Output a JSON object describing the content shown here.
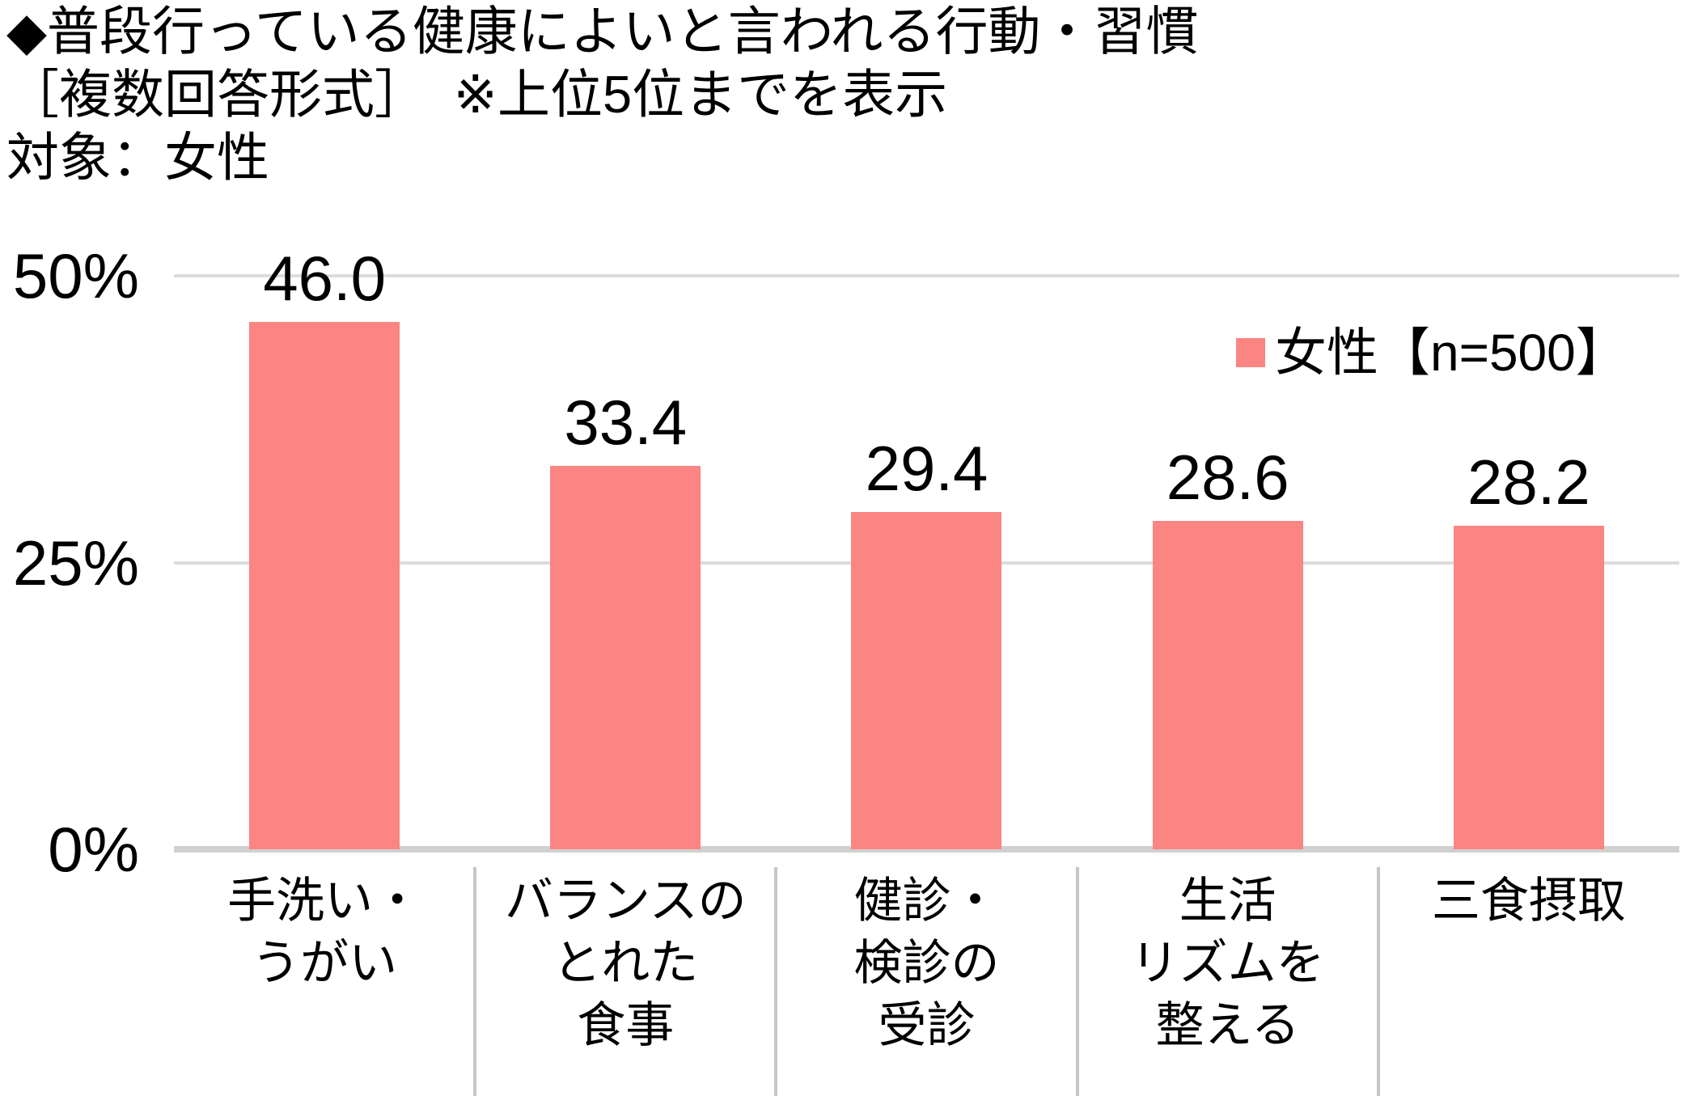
{
  "header": {
    "title": "◆普段行っている健康によいと言われる行動・習慣",
    "subtitle": "［複数回答形式］　※上位5位までを表示",
    "target": "対象：女性"
  },
  "legend": {
    "label": "女性【n=500】",
    "marker_color": "#fa8583"
  },
  "chart_data": {
    "type": "bar",
    "title": "◆普段行っている健康によいと言われる行動・習慣",
    "subtitle": "［複数回答形式］　※上位5位までを表示",
    "target_note": "対象：女性",
    "categories": [
      "手洗い・うがい",
      "バランスのとれた食事",
      "健診・検診の受診",
      "生活リズムを整える",
      "三食摂取"
    ],
    "category_lines": [
      [
        "手洗い・",
        "うがい"
      ],
      [
        "バランスの",
        "とれた",
        "食事"
      ],
      [
        "健診・",
        "検診の",
        "受診"
      ],
      [
        "生活",
        "リズムを",
        "整える"
      ],
      [
        "三食摂取"
      ]
    ],
    "series": [
      {
        "name": "女性【n=500】",
        "values": [
          46.0,
          33.4,
          29.4,
          28.6,
          28.2
        ]
      }
    ],
    "value_labels": [
      "46.0",
      "33.4",
      "29.4",
      "28.6",
      "28.2"
    ],
    "xlabel": "",
    "ylabel": "",
    "ylim": [
      0,
      50
    ],
    "yticks": [
      {
        "value": 50,
        "label": "50%"
      },
      {
        "value": 25,
        "label": "25%"
      },
      {
        "value": 0,
        "label": "0%"
      }
    ],
    "grid": true,
    "legend_position": "upper right",
    "bar_color": "#fa8583"
  }
}
